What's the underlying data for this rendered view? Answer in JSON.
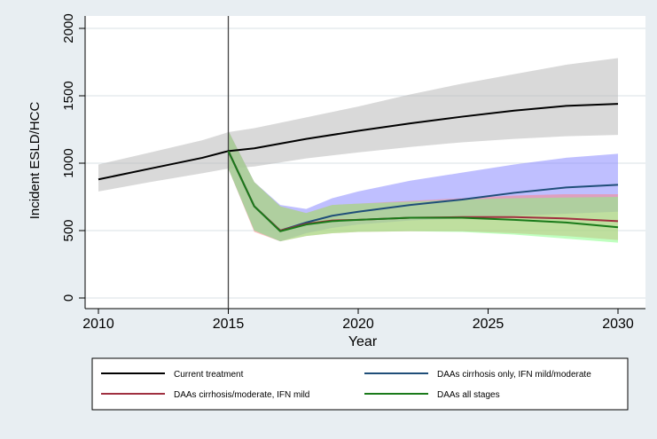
{
  "chart_data": {
    "type": "line",
    "title": "",
    "xlabel": "Year",
    "ylabel": "Incident ESLD/HCC",
    "xlim": [
      2010,
      2030
    ],
    "ylim": [
      0,
      2000
    ],
    "xticks": [
      2010,
      2015,
      2020,
      2025,
      2030
    ],
    "yticks": [
      0,
      500,
      1000,
      1500,
      2000
    ],
    "vline": 2015,
    "grid": "horizontal",
    "legend_position": "bottom",
    "colors": {
      "background": "#e8eef2",
      "plot_bg": "#ffffff"
    },
    "series": [
      {
        "name": "Current treatment",
        "color": "#000000",
        "band_color": "#b4b4b4",
        "x": [
          2010,
          2012,
          2014,
          2015,
          2016,
          2018,
          2020,
          2022,
          2024,
          2026,
          2028,
          2030
        ],
        "y": [
          880,
          960,
          1040,
          1090,
          1110,
          1180,
          1240,
          1295,
          1345,
          1390,
          1425,
          1440
        ],
        "lower": [
          790,
          860,
          925,
          960,
          975,
          1035,
          1080,
          1120,
          1155,
          1180,
          1200,
          1210
        ],
        "upper": [
          990,
          1080,
          1170,
          1230,
          1260,
          1340,
          1420,
          1510,
          1590,
          1660,
          1730,
          1780
        ]
      },
      {
        "name": "DAAs cirrhosis only, IFN mild/moderate",
        "color": "#1f4e79",
        "band_color": "#7f7fff",
        "x": [
          2015,
          2016,
          2017,
          2018,
          2019,
          2020,
          2022,
          2024,
          2026,
          2028,
          2030
        ],
        "y": [
          1090,
          680,
          500,
          560,
          610,
          640,
          690,
          730,
          780,
          820,
          840
        ],
        "lower": [
          960,
          500,
          420,
          480,
          520,
          545,
          575,
          590,
          610,
          625,
          640
        ],
        "upper": [
          1240,
          860,
          690,
          660,
          740,
          790,
          870,
          930,
          990,
          1040,
          1070
        ]
      },
      {
        "name": "DAAs cirrhosis/moderate, IFN mild",
        "color": "#a03040",
        "band_color": "#ff8080",
        "x": [
          2015,
          2016,
          2017,
          2018,
          2019,
          2020,
          2022,
          2024,
          2026,
          2028,
          2030
        ],
        "y": [
          1090,
          680,
          500,
          550,
          575,
          580,
          595,
          600,
          600,
          590,
          570
        ],
        "lower": [
          960,
          490,
          420,
          460,
          480,
          490,
          495,
          495,
          480,
          460,
          430
        ],
        "upper": [
          1240,
          860,
          680,
          630,
          690,
          700,
          720,
          740,
          760,
          770,
          770
        ]
      },
      {
        "name": "DAAs all stages",
        "color": "#1a7a1a",
        "band_color": "#7fff7f",
        "x": [
          2015,
          2016,
          2017,
          2018,
          2019,
          2020,
          2022,
          2024,
          2026,
          2028,
          2030
        ],
        "y": [
          1090,
          680,
          495,
          545,
          570,
          580,
          595,
          595,
          580,
          560,
          525
        ],
        "lower": [
          960,
          500,
          420,
          460,
          480,
          490,
          495,
          490,
          470,
          440,
          410
        ],
        "upper": [
          1240,
          860,
          680,
          630,
          690,
          700,
          715,
          730,
          740,
          745,
          750
        ]
      }
    ]
  }
}
